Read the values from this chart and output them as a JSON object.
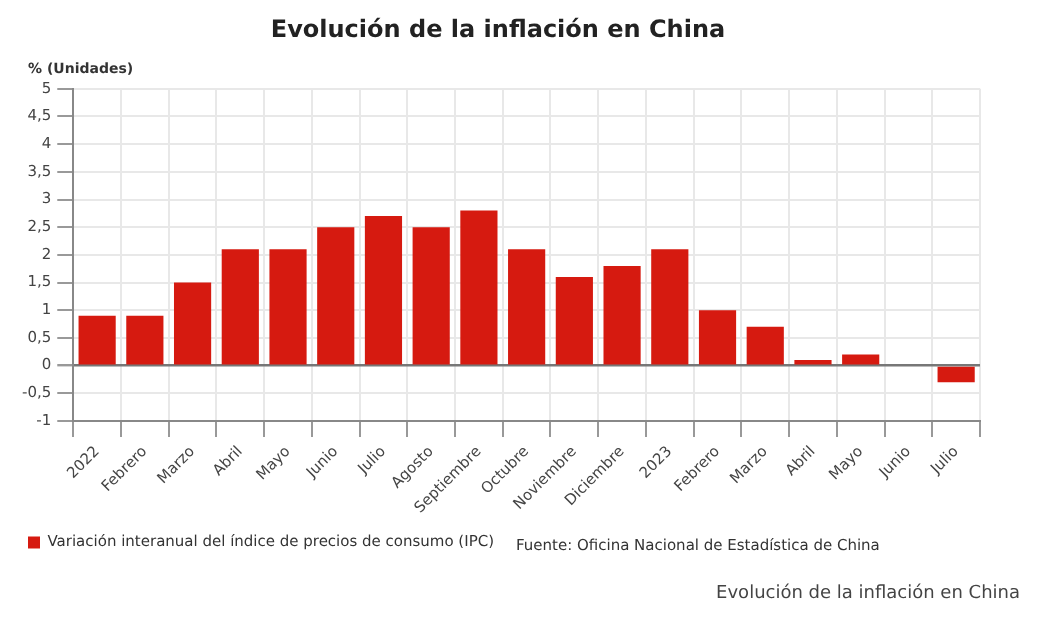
{
  "chart_data": {
    "type": "bar",
    "title": "Evolución de la inflación en China",
    "ylabel": "% (Unidades)",
    "categories": [
      "2022",
      "Febrero",
      "Marzo",
      "Abril",
      "Mayo",
      "Junio",
      "Julio",
      "Agosto",
      "Septiembre",
      "Octubre",
      "Noviembre",
      "Diciembre",
      "2023",
      "Febrero",
      "Marzo",
      "Abril",
      "Mayo",
      "Junio",
      "Julio"
    ],
    "series": [
      {
        "name": "Variación interanual del índice de precios de consumo (IPC)",
        "color": "#d61a10",
        "values": [
          0.9,
          0.9,
          1.5,
          2.1,
          2.1,
          2.5,
          2.7,
          2.5,
          2.8,
          2.1,
          1.6,
          1.8,
          2.1,
          1.0,
          0.7,
          0.1,
          0.2,
          0,
          -0.3
        ]
      }
    ],
    "ylim": [
      -1,
      5
    ],
    "yticks": [
      -1,
      {
        "value": -0.5,
        "label": "-0,5"
      },
      0,
      {
        "value": 0.5,
        "label": "0,5"
      },
      1,
      {
        "value": 1.5,
        "label": "1,5"
      },
      2,
      {
        "value": 2.5,
        "label": "2,5"
      },
      3,
      {
        "value": 3.5,
        "label": "3,5"
      },
      4,
      {
        "value": 4.5,
        "label": "4,5"
      },
      5
    ],
    "grid": true,
    "legend": "bottom left",
    "annotations": [
      "Fuente: Oficina Nacional de Estadística de China",
      "Evolución de la inflación en China"
    ]
  }
}
